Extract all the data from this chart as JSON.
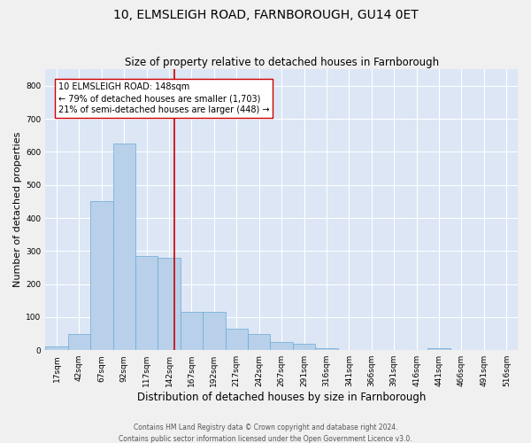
{
  "title": "10, ELMSLEIGH ROAD, FARNBOROUGH, GU14 0ET",
  "subtitle": "Size of property relative to detached houses in Farnborough",
  "xlabel": "Distribution of detached houses by size in Farnborough",
  "ylabel": "Number of detached properties",
  "footer_line1": "Contains HM Land Registry data © Crown copyright and database right 2024.",
  "footer_line2": "Contains public sector information licensed under the Open Government Licence v3.0.",
  "bar_labels": [
    "17sqm",
    "42sqm",
    "67sqm",
    "92sqm",
    "117sqm",
    "142sqm",
    "167sqm",
    "192sqm",
    "217sqm",
    "242sqm",
    "267sqm",
    "291sqm",
    "316sqm",
    "341sqm",
    "366sqm",
    "391sqm",
    "416sqm",
    "441sqm",
    "466sqm",
    "491sqm",
    "516sqm"
  ],
  "bar_values": [
    10,
    50,
    450,
    625,
    285,
    280,
    115,
    115,
    65,
    50,
    25,
    20,
    5,
    0,
    0,
    0,
    0,
    5,
    0,
    0,
    0
  ],
  "bar_color": "#b8d0ea",
  "bar_edgecolor": "#6aaad4",
  "vline_color": "#cc0000",
  "vline_x": 5.24,
  "annotation_text_line1": "10 ELMSLEIGH ROAD: 148sqm",
  "annotation_text_line2": "← 79% of detached houses are smaller (1,703)",
  "annotation_text_line3": "21% of semi-detached houses are larger (448) →",
  "annotation_box_facecolor": "#ffffff",
  "annotation_border_color": "#cc0000",
  "ylim": [
    0,
    850
  ],
  "yticks": [
    0,
    100,
    200,
    300,
    400,
    500,
    600,
    700,
    800
  ],
  "plot_background": "#dce6f5",
  "fig_background": "#f0f0f0",
  "grid_color": "#ffffff",
  "title_fontsize": 10,
  "subtitle_fontsize": 8.5,
  "xlabel_fontsize": 8.5,
  "ylabel_fontsize": 8,
  "tick_fontsize": 6.5,
  "annotation_fontsize": 7,
  "footer_fontsize": 5.5
}
